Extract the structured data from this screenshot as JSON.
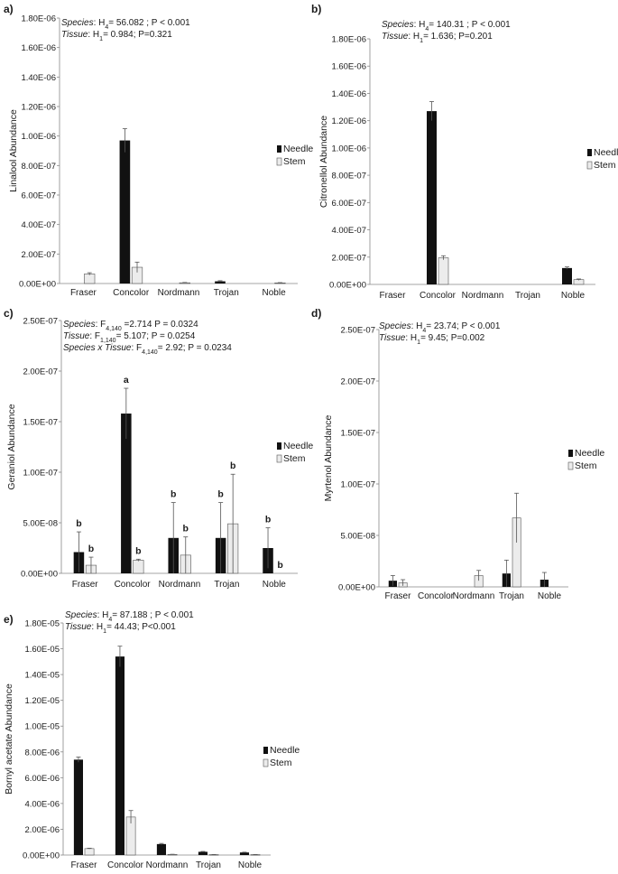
{
  "chart_data": [
    {
      "type": "bar",
      "panel": "a)",
      "ylabel": "Linalool  Abundance",
      "categories": [
        "Fraser",
        "Concolor",
        "Nordmann",
        "Trojan",
        "Noble"
      ],
      "yticks": [
        "0.00E+00",
        "2.00E-07",
        "4.00E-07",
        "6.00E-07",
        "8.00E-07",
        "1.00E-06",
        "1.20E-06",
        "1.40E-06",
        "1.60E-06",
        "1.80E-06"
      ],
      "ylim": [
        0,
        1.8e-06
      ],
      "series": [
        {
          "name": "Needle",
          "values": [
            0,
            9.7e-07,
            0,
            1.5e-08,
            0
          ],
          "errors": [
            0,
            8e-08,
            0,
            4e-09,
            0
          ]
        },
        {
          "name": "Stem",
          "values": [
            6.5e-08,
            1.1e-07,
            5e-09,
            0,
            4e-09
          ],
          "errors": [
            8e-09,
            3.5e-08,
            2e-09,
            0,
            2e-09
          ]
        }
      ],
      "stats": [
        [
          {
            "t": "Species",
            "i": true
          },
          {
            "t": ": H"
          },
          {
            "t": "4",
            "sub": true
          },
          {
            "t": "= 56.082 ; P < 0.001"
          }
        ],
        [
          {
            "t": "Tissue",
            "i": true
          },
          {
            "t": ": H"
          },
          {
            "t": "1",
            "sub": true
          },
          {
            "t": "=  0.984; P=0.321"
          }
        ]
      ],
      "sig_labels": null
    },
    {
      "type": "bar",
      "panel": "b)",
      "ylabel": "Citronellol Abundance",
      "categories": [
        "Fraser",
        "Concolor",
        "Nordmann",
        "Trojan",
        "Noble"
      ],
      "yticks": [
        "0.00E+00",
        "2.00E-07",
        "4.00E-07",
        "6.00E-07",
        "8.00E-07",
        "1.00E-06",
        "1.20E-06",
        "1.40E-06",
        "1.60E-06",
        "1.80E-06"
      ],
      "ylim": [
        0,
        1.8e-06
      ],
      "series": [
        {
          "name": "Needle",
          "values": [
            0,
            1.27e-06,
            0,
            0,
            1.2e-07
          ],
          "errors": [
            0,
            7e-08,
            0,
            0,
            8e-09
          ]
        },
        {
          "name": "Stem",
          "values": [
            0,
            1.95e-07,
            0,
            0,
            3.5e-08
          ],
          "errors": [
            0,
            1.5e-08,
            0,
            0,
            5e-09
          ]
        }
      ],
      "stats": [
        [
          {
            "t": "Species",
            "i": true
          },
          {
            "t": ": H"
          },
          {
            "t": "4",
            "sub": true
          },
          {
            "t": "= 140.31 ; P < 0.001"
          }
        ],
        [
          {
            "t": "Tissue",
            "i": true
          },
          {
            "t": ": H"
          },
          {
            "t": "1",
            "sub": true
          },
          {
            "t": "=  1.636; P=0.201"
          }
        ]
      ],
      "sig_labels": null
    },
    {
      "type": "bar",
      "panel": "c)",
      "ylabel": "Geraniol Abundance",
      "categories": [
        "Fraser",
        "Concolor",
        "Nordmann",
        "Trojan",
        "Noble"
      ],
      "yticks": [
        "0.00E+00",
        "5.00E-08",
        "1.00E-07",
        "1.50E-07",
        "2.00E-07",
        "2.50E-07"
      ],
      "ylim": [
        0,
        2.5e-07
      ],
      "series": [
        {
          "name": "Needle",
          "values": [
            2.1e-08,
            1.58e-07,
            3.5e-08,
            3.5e-08,
            2.5e-08
          ],
          "errors": [
            2e-08,
            2.5e-08,
            3.5e-08,
            3.5e-08,
            2e-08
          ]
        },
        {
          "name": "Stem",
          "values": [
            8e-09,
            1.3e-08,
            1.8e-08,
            4.9e-08,
            0
          ],
          "errors": [
            8e-09,
            1e-09,
            1.8e-08,
            4.9e-08,
            0
          ]
        }
      ],
      "stats": [
        [
          {
            "t": "Species",
            "i": true
          },
          {
            "t": ": F"
          },
          {
            "t": "4,140",
            "sub": true
          },
          {
            "t": " =2.714   P = 0.0324"
          }
        ],
        [
          {
            "t": "Tissue",
            "i": true
          },
          {
            "t": ": F"
          },
          {
            "t": "1,140",
            "sub": true
          },
          {
            "t": "= 5.107; P = 0.0254"
          }
        ],
        [
          {
            "t": "Species x Tissue",
            "i": true
          },
          {
            "t": ": F"
          },
          {
            "t": "4,140",
            "sub": true
          },
          {
            "t": "= 2.92; P = 0.0234"
          }
        ]
      ],
      "sig_labels": [
        [
          "b",
          "a",
          "b",
          "b",
          "b"
        ],
        [
          "b",
          "b",
          "b",
          "b",
          "b"
        ]
      ]
    },
    {
      "type": "bar",
      "panel": "d)",
      "ylabel": "Myrtenol Abundance",
      "categories": [
        "Fraser",
        "Concolor",
        "Nordmann",
        "Trojan",
        "Noble"
      ],
      "yticks": [
        "0.00E+00",
        "5.00E-08",
        "1.00E-07",
        "1.50E-07",
        "2.00E-07",
        "2.50E-07"
      ],
      "ylim": [
        0,
        2.5e-07
      ],
      "series": [
        {
          "name": "Needle",
          "values": [
            6e-09,
            0,
            0,
            1.3e-08,
            7e-09
          ],
          "errors": [
            5e-09,
            0,
            0,
            1.3e-08,
            7e-09
          ]
        },
        {
          "name": "Stem",
          "values": [
            4e-09,
            0,
            1.1e-08,
            6.7e-08,
            0
          ],
          "errors": [
            3e-09,
            0,
            5e-09,
            2.4e-08,
            0
          ]
        }
      ],
      "stats": [
        [
          {
            "t": "Species",
            "i": true
          },
          {
            "t": ": H"
          },
          {
            "t": "4",
            "sub": true
          },
          {
            "t": "= 23.74; P < 0.001"
          }
        ],
        [
          {
            "t": "Tissue",
            "i": true
          },
          {
            "t": ": H"
          },
          {
            "t": "1",
            "sub": true
          },
          {
            "t": "=  9.45; P=0.002"
          }
        ]
      ],
      "sig_labels": null
    },
    {
      "type": "bar",
      "panel": "e)",
      "ylabel": "Bornyl acetate Abundance",
      "categories": [
        "Fraser",
        "Concolor",
        "Nordmann",
        "Trojan",
        "Noble"
      ],
      "yticks": [
        "0.00E+00",
        "2.00E-06",
        "4.00E-06",
        "6.00E-06",
        "8.00E-06",
        "1.00E-05",
        "1.20E-05",
        "1.40E-05",
        "1.60E-05",
        "1.80E-05"
      ],
      "ylim": [
        0,
        1.8e-05
      ],
      "series": [
        {
          "name": "Needle",
          "values": [
            7.4e-06,
            1.54e-05,
            8.5e-07,
            2.5e-07,
            2e-07
          ],
          "errors": [
            2e-07,
            8e-07,
            5e-08,
            3e-08,
            2e-08
          ]
        },
        {
          "name": "Stem",
          "values": [
            5e-07,
            2.95e-06,
            5e-08,
            3e-08,
            3e-08
          ],
          "errors": [
            3e-08,
            5e-07,
            1e-08,
            1e-08,
            1e-08
          ]
        }
      ],
      "stats": [
        [
          {
            "t": "Species",
            "i": true
          },
          {
            "t": ": H"
          },
          {
            "t": "4",
            "sub": true
          },
          {
            "t": "= 87.188 ; P < 0.001"
          }
        ],
        [
          {
            "t": "Tissue",
            "i": true
          },
          {
            "t": ": H"
          },
          {
            "t": "1",
            "sub": true
          },
          {
            "t": "=  44.43; P<0.001"
          }
        ]
      ],
      "sig_labels": null
    }
  ],
  "colors": {
    "needle": "#111111",
    "stem": "#ececec",
    "stem_border": "#555555",
    "axis": "#888888"
  },
  "legend": {
    "needle": "Needle",
    "stem": "Stem"
  }
}
